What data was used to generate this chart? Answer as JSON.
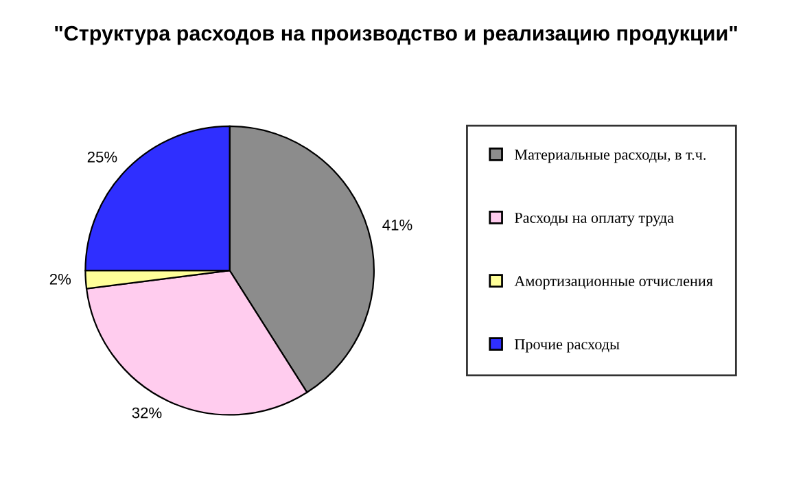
{
  "chart_data": {
    "type": "pie",
    "title": "\"Структура расходов на производство и реализацию продукции\"",
    "categories": [
      "Материальные расходы, в т.ч.",
      "Расходы на оплату труда",
      "Амортизационные отчисления",
      "Прочие расходы"
    ],
    "values": [
      41,
      32,
      2,
      25
    ],
    "value_labels": [
      "41%",
      "32%",
      "2%",
      "25%"
    ],
    "colors": [
      "#8c8c8c",
      "#ffccee",
      "#ffff99",
      "#2f2fff"
    ],
    "legend": "right"
  }
}
